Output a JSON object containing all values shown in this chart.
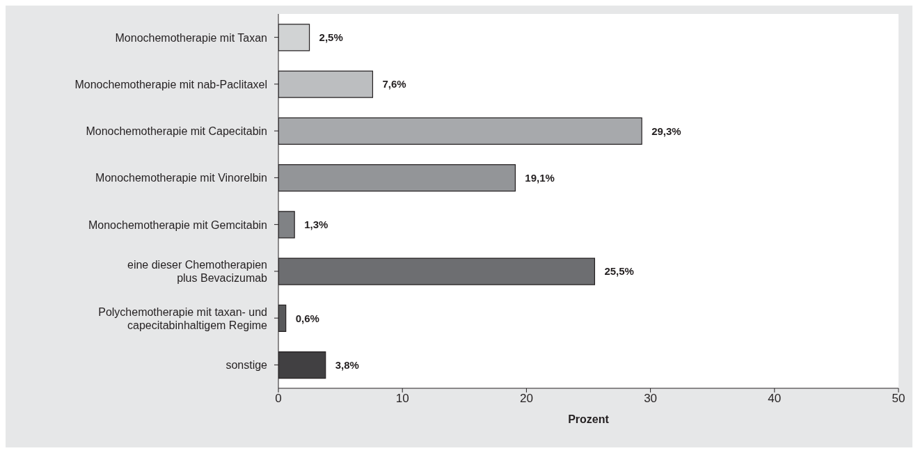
{
  "chart_data": {
    "type": "bar",
    "orientation": "horizontal",
    "xlabel": "Prozent",
    "categories": [
      "Monochemotherapie mit Taxan",
      "Monochemotherapie mit nab-Paclitaxel",
      "Monochemotherapie mit Capecitabin",
      "Monochemotherapie mit Vinorelbin",
      "Monochemotherapie mit Gemcitabin",
      "eine dieser Chemotherapien\nplus Bevacizumab",
      "Polychemotherapie mit taxan- und\ncapecitabinhaltigem Regime",
      "sonstige"
    ],
    "values": [
      2.5,
      7.6,
      29.3,
      19.1,
      1.3,
      25.5,
      0.6,
      3.8
    ],
    "value_labels": [
      "2,5%",
      "7,6%",
      "29,3%",
      "19,1%",
      "1,3%",
      "25,5%",
      "0,6%",
      "3,8%"
    ],
    "colors": [
      "#d1d3d4",
      "#bcbec0",
      "#a7a9ac",
      "#939598",
      "#808285",
      "#6d6e71",
      "#58595b",
      "#414042"
    ],
    "xlim": [
      0,
      50
    ],
    "xticks": [
      0,
      10,
      20,
      30,
      40,
      50
    ],
    "grid": false
  }
}
